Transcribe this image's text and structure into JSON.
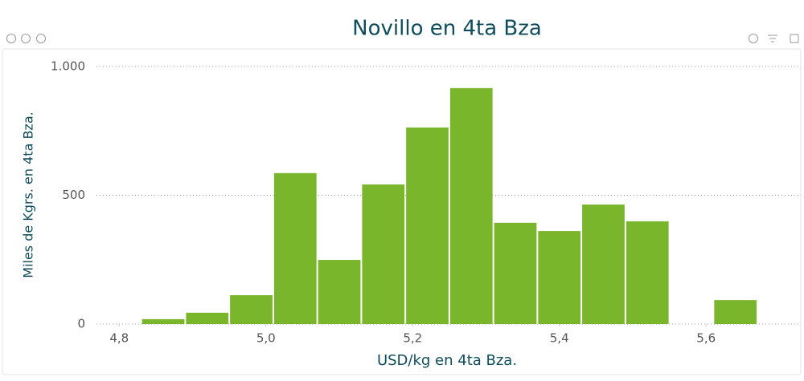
{
  "chart_data": {
    "type": "histogram",
    "title": "Novillo en 4ta Bza",
    "x_label": "USD/kg en 4ta Bza.",
    "y_label": "Miles de Kgrs.  en 4ta Bza.",
    "bins": [
      4.83,
      4.89,
      4.95,
      5.01,
      5.07,
      5.13,
      5.19,
      5.25,
      5.31,
      5.37,
      5.43,
      5.49,
      5.55,
      5.61,
      5.67
    ],
    "counts": [
      19,
      44,
      112,
      586,
      249,
      542,
      763,
      916,
      393,
      361,
      464,
      399,
      0,
      93
    ],
    "color": "#7ab62b",
    "xlim": [
      4.769,
      5.728
    ],
    "ylim": [
      0,
      1065
    ],
    "xticks": [
      {
        "value": 4.8,
        "label": "4,8"
      },
      {
        "value": 5.0,
        "label": "5,0"
      },
      {
        "value": 5.2,
        "label": "5,2"
      },
      {
        "value": 5.4,
        "label": "5,4"
      },
      {
        "value": 5.6,
        "label": "5,6"
      }
    ],
    "yticks": [
      0,
      500,
      {
        "value": 1000,
        "label": "1.000"
      }
    ],
    "grid": true
  }
}
